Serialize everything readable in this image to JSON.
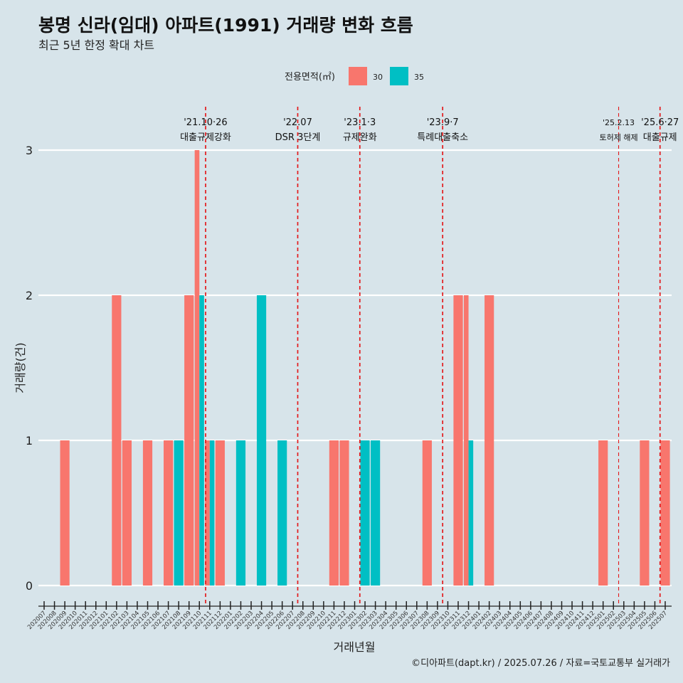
{
  "chart_data": {
    "type": "bar",
    "title": "봉명 신라(임대) 아파트(1991) 거래량 변화 흐름",
    "subtitle": "최근 5년 한정 확대 차트",
    "xlabel": "거래년월",
    "ylabel": "거래량(건)",
    "ylim": [
      0,
      3
    ],
    "yticks": [
      0,
      1,
      2,
      3
    ],
    "grid": "horizontal",
    "legend": {
      "title": "전용면적(㎡)",
      "placement": "top"
    },
    "caption": "©디아파트(dapt.kr) / 2025.07.26 / 자료=국토교통부 실거래가",
    "months": [
      "202007",
      "202008",
      "202009",
      "202010",
      "202011",
      "202012",
      "202101",
      "202102",
      "202103",
      "202104",
      "202105",
      "202106",
      "202107",
      "202108",
      "202109",
      "202110",
      "202111",
      "202112",
      "202201",
      "202202",
      "202203",
      "202204",
      "202205",
      "202206",
      "202207",
      "202208",
      "202209",
      "202210",
      "202211",
      "202212",
      "202301",
      "202302",
      "202303",
      "202304",
      "202305",
      "202306",
      "202307",
      "202308",
      "202309",
      "202310",
      "202311",
      "202312",
      "202401",
      "202402",
      "202403",
      "202404",
      "202405",
      "202406",
      "202407",
      "202408",
      "202409",
      "202410",
      "202411",
      "202412",
      "202501",
      "202502",
      "202503",
      "202504",
      "202505",
      "202506",
      "202507"
    ],
    "bars": [
      {
        "month": "202009",
        "series": "30",
        "value": 1,
        "dodge": "full"
      },
      {
        "month": "202102",
        "series": "30",
        "value": 2,
        "dodge": "full"
      },
      {
        "month": "202103",
        "series": "30",
        "value": 1,
        "dodge": "full"
      },
      {
        "month": "202105",
        "series": "30",
        "value": 1,
        "dodge": "full"
      },
      {
        "month": "202107",
        "series": "30",
        "value": 1,
        "dodge": "full"
      },
      {
        "month": "202108",
        "series": "35",
        "value": 1,
        "dodge": "full"
      },
      {
        "month": "202109",
        "series": "30",
        "value": 2,
        "dodge": "full"
      },
      {
        "month": "202110",
        "series": "30",
        "value": 3,
        "dodge": "left"
      },
      {
        "month": "202110",
        "series": "35",
        "value": 2,
        "dodge": "right"
      },
      {
        "month": "202111",
        "series": "30",
        "value": 1,
        "dodge": "left"
      },
      {
        "month": "202111",
        "series": "35",
        "value": 1,
        "dodge": "right"
      },
      {
        "month": "202112",
        "series": "30",
        "value": 1,
        "dodge": "full"
      },
      {
        "month": "202202",
        "series": "35",
        "value": 1,
        "dodge": "full"
      },
      {
        "month": "202204",
        "series": "35",
        "value": 2,
        "dodge": "full"
      },
      {
        "month": "202206",
        "series": "35",
        "value": 1,
        "dodge": "full"
      },
      {
        "month": "202211",
        "series": "30",
        "value": 1,
        "dodge": "full"
      },
      {
        "month": "202212",
        "series": "30",
        "value": 1,
        "dodge": "full"
      },
      {
        "month": "202302",
        "series": "35",
        "value": 1,
        "dodge": "full"
      },
      {
        "month": "202303",
        "series": "35",
        "value": 1,
        "dodge": "full"
      },
      {
        "month": "202308",
        "series": "30",
        "value": 1,
        "dodge": "full"
      },
      {
        "month": "202311",
        "series": "30",
        "value": 2,
        "dodge": "full"
      },
      {
        "month": "202312",
        "series": "30",
        "value": 2,
        "dodge": "left"
      },
      {
        "month": "202312",
        "series": "35",
        "value": 1,
        "dodge": "right"
      },
      {
        "month": "202402",
        "series": "30",
        "value": 2,
        "dodge": "full"
      },
      {
        "month": "202501",
        "series": "30",
        "value": 1,
        "dodge": "full"
      },
      {
        "month": "202505",
        "series": "30",
        "value": 1,
        "dodge": "full"
      },
      {
        "month": "202507",
        "series": "30",
        "value": 1,
        "dodge": "full"
      }
    ],
    "series": [
      {
        "name": "30",
        "color": "#f8766d"
      },
      {
        "name": "35",
        "color": "#00bfc4"
      }
    ],
    "events": [
      {
        "date": "'21.10·26",
        "label": "대출규제강화",
        "month_index": 15.6,
        "style": "dashed-red"
      },
      {
        "date": "'22.07",
        "label": "DSR 3단계",
        "month_index": 24.5,
        "style": "dashed-red"
      },
      {
        "date": "'23.1·3",
        "label": "규제완화",
        "month_index": 30.5,
        "style": "dashed-red"
      },
      {
        "date": "'23.9·7",
        "label": "특례대출축소",
        "month_index": 38.5,
        "style": "dashed-red"
      },
      {
        "date": "'25.2.13",
        "label": "토허제 해제",
        "month_index": 55.5,
        "style": "dashed-red-thin"
      },
      {
        "date": "'25.6·27",
        "label": "대출규제",
        "month_index": 59.5,
        "style": "dashed-red"
      }
    ]
  }
}
